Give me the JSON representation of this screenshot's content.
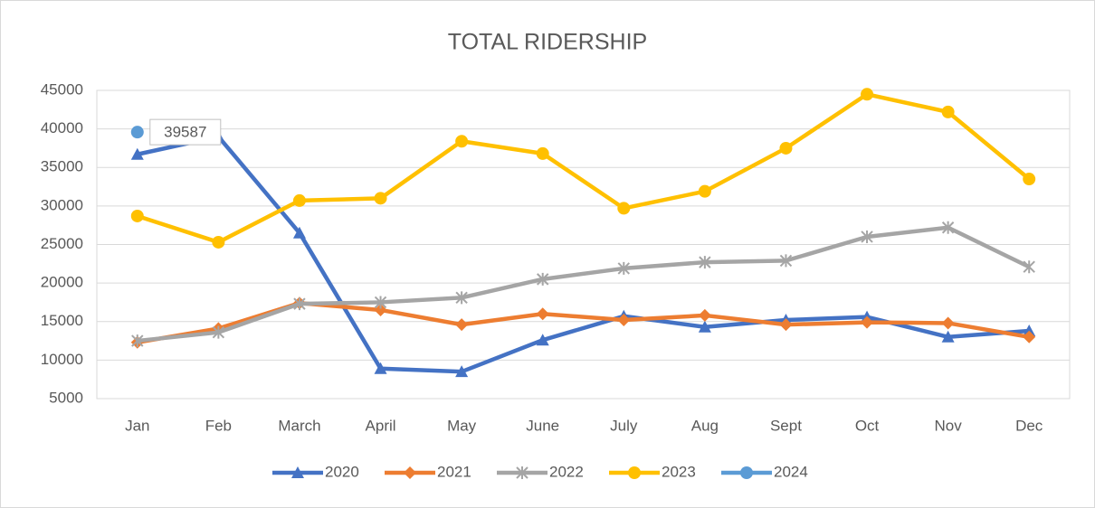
{
  "chart_data": {
    "type": "line",
    "title": "TOTAL RIDERSHIP",
    "categories": [
      "Jan",
      "Feb",
      "March",
      "April",
      "May",
      "June",
      "July",
      "Aug",
      "Sept",
      "Oct",
      "Nov",
      "Dec"
    ],
    "ylim": [
      5000,
      45000
    ],
    "yticks": [
      5000,
      10000,
      15000,
      20000,
      25000,
      30000,
      35000,
      40000,
      45000
    ],
    "grid": true,
    "legend": "bottom",
    "series": [
      {
        "name": "2020",
        "color": "#4472c4",
        "marker": "triangle",
        "values": [
          36700,
          39000,
          26500,
          8900,
          8500,
          12600,
          15700,
          14300,
          15200,
          15600,
          13000,
          13800
        ]
      },
      {
        "name": "2021",
        "color": "#ed7d31",
        "marker": "diamond",
        "values": [
          12300,
          14100,
          17400,
          16500,
          14600,
          16000,
          15200,
          15800,
          14600,
          14900,
          14800,
          13000
        ]
      },
      {
        "name": "2022",
        "color": "#a5a5a5",
        "marker": "star",
        "values": [
          12500,
          13600,
          17300,
          17500,
          18100,
          20500,
          21900,
          22700,
          22900,
          26000,
          27200,
          22100
        ]
      },
      {
        "name": "2023",
        "color": "#ffc000",
        "marker": "circle",
        "values": [
          28700,
          25300,
          30700,
          31000,
          38400,
          36800,
          29700,
          31900,
          37500,
          44500,
          42200,
          33500
        ]
      },
      {
        "name": "2024",
        "color": "#5b9bd5",
        "marker": "circle",
        "values": [
          39587,
          null,
          null,
          null,
          null,
          null,
          null,
          null,
          null,
          null,
          null,
          null
        ],
        "data_labels": true
      }
    ]
  }
}
